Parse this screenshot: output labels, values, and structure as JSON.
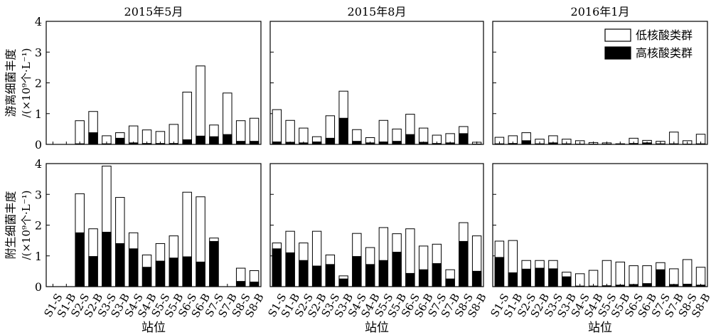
{
  "chart_data": {
    "type": "bar",
    "stacked": true,
    "stations": [
      "S1-S",
      "S1-B",
      "S2-S",
      "S2-B",
      "S3-S",
      "S3-B",
      "S4-S",
      "S4-B",
      "S5-S",
      "S5-B",
      "S6-S",
      "S6-B",
      "S7-S",
      "S7-B",
      "S8-S",
      "S8-B"
    ],
    "xlabel": "站位",
    "ylim": [
      0,
      4
    ],
    "yticks": [
      0,
      1,
      2,
      3,
      4
    ],
    "legend": {
      "position": "top-right",
      "entries": [
        {
          "label": "低核酸类群",
          "color": "#ffffff"
        },
        {
          "label": "高核酸类群",
          "color": "#000000"
        }
      ]
    },
    "rows": [
      {
        "ylabel_line1": "游离细菌丰度",
        "ylabel_line2": "/(×10⁹个·L⁻¹)"
      },
      {
        "ylabel_line1": "附生细菌丰度",
        "ylabel_line2": "/(×10⁹个·L⁻¹)"
      }
    ],
    "columns": [
      "2015年5月",
      "2015年8月",
      "2016年1月"
    ],
    "panels": [
      {
        "row": 0,
        "col": 0,
        "total": [
          0,
          0,
          0.77,
          1.07,
          0.28,
          0.38,
          0.6,
          0.47,
          0.42,
          0.65,
          1.7,
          2.55,
          0.63,
          1.67,
          0.77,
          0.85
        ],
        "high": [
          0,
          0,
          0.02,
          0.38,
          0.02,
          0.2,
          0.05,
          0.03,
          0.03,
          0.03,
          0.15,
          0.27,
          0.25,
          0.32,
          0.1,
          0.1
        ]
      },
      {
        "row": 0,
        "col": 1,
        "total": [
          1.13,
          0.78,
          0.53,
          0.25,
          0.93,
          1.73,
          0.48,
          0.22,
          0.78,
          0.5,
          0.98,
          0.53,
          0.3,
          0.35,
          0.58,
          0.07
        ],
        "high": [
          0.08,
          0.07,
          0.05,
          0.08,
          0.2,
          0.85,
          0.1,
          0.05,
          0.08,
          0.1,
          0.32,
          0.07,
          0.03,
          0.05,
          0.35,
          0.01
        ]
      },
      {
        "row": 0,
        "col": 2,
        "total": [
          0.23,
          0.28,
          0.38,
          0.17,
          0.28,
          0.17,
          0.12,
          0.06,
          0.05,
          0.02,
          0.2,
          0.13,
          0.1,
          0.4,
          0.12,
          0.33
        ],
        "high": [
          0.02,
          0.03,
          0.12,
          0.02,
          0.05,
          0.02,
          0.01,
          0.01,
          0.01,
          0.01,
          0.03,
          0.05,
          0.02,
          0.02,
          0.01,
          0.02
        ]
      },
      {
        "row": 1,
        "col": 0,
        "total": [
          0,
          0,
          3.02,
          1.88,
          3.92,
          2.9,
          1.75,
          1.03,
          1.4,
          1.65,
          3.07,
          2.92,
          1.58,
          0,
          0.6,
          0.52
        ],
        "high": [
          0,
          0,
          1.75,
          0.98,
          1.77,
          1.4,
          1.23,
          0.63,
          0.83,
          0.93,
          0.97,
          0.8,
          1.47,
          0,
          0.17,
          0.15
        ]
      },
      {
        "row": 1,
        "col": 1,
        "total": [
          1.42,
          1.8,
          1.42,
          1.8,
          1.03,
          0.35,
          1.73,
          1.27,
          1.92,
          1.72,
          1.88,
          1.32,
          1.38,
          0.55,
          2.08,
          1.65
        ],
        "high": [
          1.23,
          1.1,
          0.85,
          0.67,
          0.72,
          0.25,
          0.98,
          0.72,
          0.85,
          1.12,
          0.43,
          0.55,
          0.75,
          0.25,
          1.47,
          0.5
        ]
      },
      {
        "row": 1,
        "col": 2,
        "total": [
          1.48,
          1.5,
          0.85,
          0.85,
          0.85,
          0.47,
          0.42,
          0.53,
          0.85,
          0.8,
          0.68,
          0.68,
          0.78,
          0.58,
          0.88,
          0.63
        ],
        "high": [
          0.95,
          0.45,
          0.57,
          0.6,
          0.58,
          0.32,
          0.02,
          0.02,
          0.03,
          0.05,
          0.07,
          0.1,
          0.55,
          0.07,
          0.08,
          0.05
        ]
      }
    ]
  }
}
